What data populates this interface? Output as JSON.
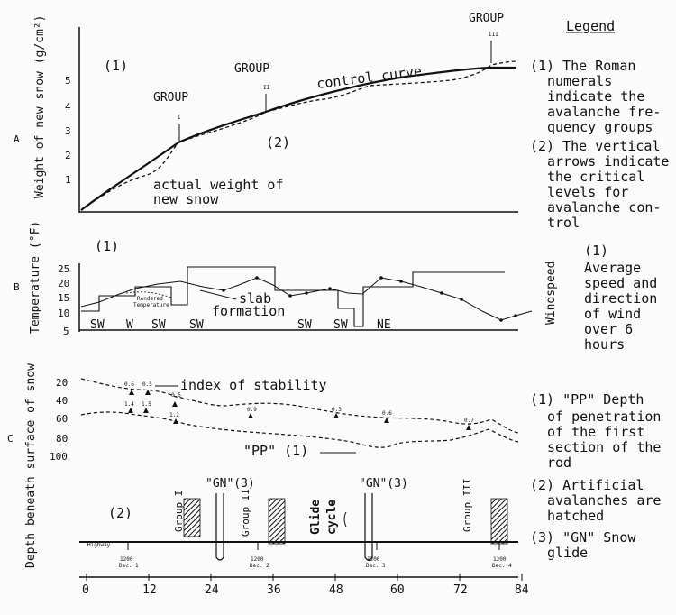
{
  "legend": {
    "title": "Legend",
    "a_items": [
      [
        "(1) The Roman",
        "numerals",
        "indicate the",
        "avalanche fre-",
        "quency groups"
      ],
      [
        "(2) The vertical",
        "arrows indicate",
        "the critical",
        "levels for",
        "avalanche con-",
        "trol"
      ]
    ],
    "b_items": [
      [
        "(1)",
        "Average",
        "speed and",
        "direction",
        "of wind",
        "over 6",
        "hours"
      ]
    ],
    "c_items": [
      [
        "(1) \"PP\" Depth",
        "of penetration",
        "of the first",
        "section of the",
        "rod"
      ],
      [
        "(2) Artificial",
        "avalanches are",
        "hatched"
      ],
      [
        "(3) \"GN\" Snow",
        "glide"
      ]
    ]
  },
  "panel_a": {
    "letter": "A",
    "ylabel": "Weight of new snow (g/cm²)",
    "yticks": [
      "1",
      "2",
      "3",
      "4",
      "5"
    ],
    "mark1": "(1)",
    "mark2": "(2)",
    "control_label": "control curve",
    "actual_label": [
      "actual weight of",
      "new snow"
    ],
    "groups": [
      {
        "word": "GROUP",
        "numeral": "I"
      },
      {
        "word": "GROUP",
        "numeral": "II"
      },
      {
        "word": "GROUP",
        "numeral": "III"
      }
    ]
  },
  "panel_b": {
    "letter": "B",
    "ylabel": "Temperature (°F)",
    "yticks": [
      "5",
      "10",
      "15",
      "20",
      "25"
    ],
    "mark1": "(1)",
    "slab_label": [
      "slab",
      "formation"
    ],
    "wind_dirs": [
      "SW",
      "W",
      "SW",
      "SW",
      "SW",
      "SW",
      "NE"
    ],
    "right_label": "Windspeed",
    "small_labels": [
      "Rendered",
      "Temperature"
    ]
  },
  "panel_c": {
    "letter": "C",
    "ylabel": "Depth beneath surface of snow",
    "yticks": [
      "20",
      "40",
      "60",
      "80",
      "100"
    ],
    "stability_label": "index of stability",
    "stability_values": [
      "0.6",
      "0.5",
      "0.5",
      "1.4",
      "1.5",
      "1.2",
      "0.9",
      "0.3",
      "0.6",
      "0.7"
    ],
    "pp_label": "\"PP\" (1)",
    "mark2": "(2)",
    "gn_labels": [
      "\"GN\"(3)",
      "\"GN\"(3)"
    ],
    "group_labels": [
      "Group I",
      "Group II",
      "Group III"
    ],
    "glide_label": [
      "Glide",
      "cycle"
    ],
    "highway": "Highway",
    "dates": [
      [
        "1200",
        "Dec. 1"
      ],
      [
        "1200",
        "Dec. 2"
      ],
      [
        "1200",
        "Dec. 3"
      ],
      [
        "1200",
        "Dec. 4"
      ]
    ]
  },
  "x_axis": {
    "ticks": [
      "0",
      "12",
      "24",
      "36",
      "48",
      "60",
      "72",
      "84"
    ]
  }
}
